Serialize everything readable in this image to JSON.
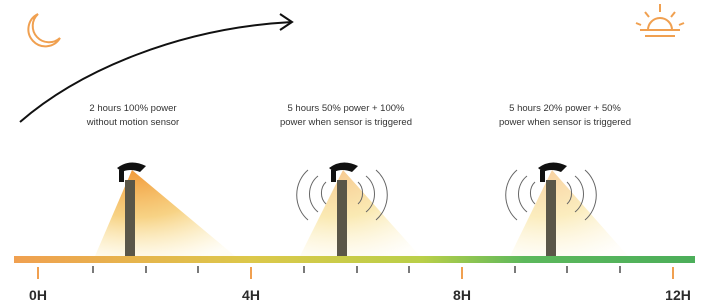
{
  "phases": [
    {
      "lines": [
        "2 hours 100% power",
        "without motion sensor"
      ]
    },
    {
      "lines": [
        "5 hours  50% power + 100%",
        "power when sensor is triggered"
      ]
    },
    {
      "lines": [
        "5 hours  20% power + 50%",
        "power when sensor is triggered"
      ]
    }
  ],
  "timeline": {
    "labels": [
      "0H",
      "4H",
      "8H",
      "12H"
    ]
  }
}
